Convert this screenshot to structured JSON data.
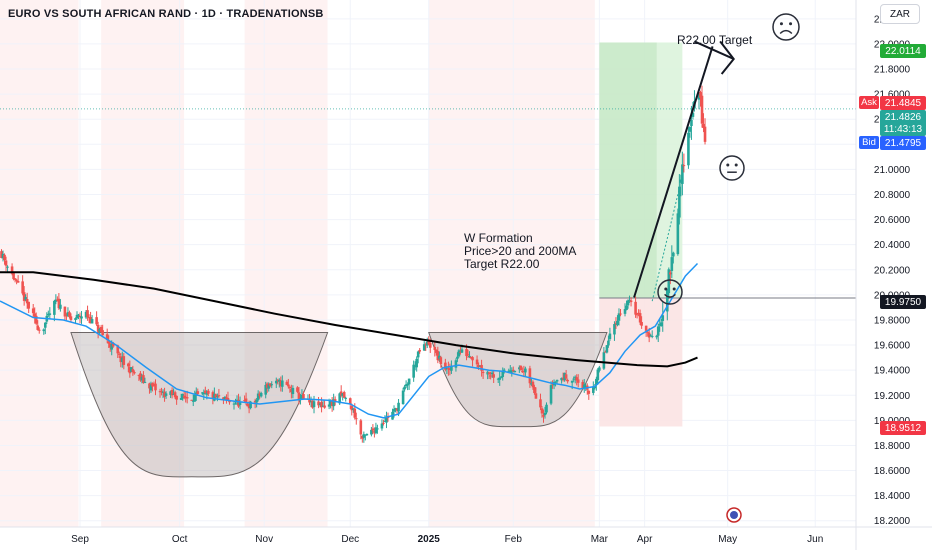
{
  "header": {
    "title": "EURO VS SOUTH AFRICAN RAND · 1D · TRADENATIONSB"
  },
  "toolbar": {
    "currency": "ZAR"
  },
  "colors": {
    "up": "#26a69a",
    "down": "#ef5350",
    "ma20": "#2196f3",
    "ma200": "#000000",
    "target_zone": "#d9f2d9",
    "stop_zone": "#fbe3e3",
    "bowl": "#b8b1b1"
  },
  "chart_data": {
    "type": "candlestick",
    "symbol": "EURZAR",
    "interval": "1D",
    "yaxis": {
      "ticks": [
        22.2,
        22.0,
        21.8,
        21.6,
        21.4,
        21.2,
        21.0,
        20.8,
        20.6,
        20.4,
        20.2,
        20.0,
        19.8,
        19.6,
        19.4,
        19.2,
        19.0,
        18.8,
        18.6,
        18.4,
        18.2
      ],
      "tick_labels": [
        "22.2000",
        "22.0000",
        "21.8000",
        "21.6000",
        "21.4000",
        "21.2000",
        "21.0000",
        "20.8000",
        "20.6000",
        "20.4000",
        "20.2000",
        "20.0000",
        "19.8000",
        "19.6000",
        "19.4000",
        "19.2000",
        "19.0000",
        "18.8000",
        "18.6000",
        "18.4000",
        "18.2000"
      ],
      "range": [
        18.15,
        22.35
      ]
    },
    "xaxis": {
      "labels": [
        "Sep",
        "Oct",
        "Nov",
        "Dec",
        "2025",
        "Feb",
        "Mar",
        "Apr",
        "May",
        "Jun"
      ],
      "label_days": [
        31,
        97,
        153,
        210,
        262,
        318,
        375,
        405,
        460,
        518
      ],
      "range_days": [
        -22,
        545
      ]
    },
    "price_levels": {
      "target": {
        "value": 22.0114,
        "label": "22.0114"
      },
      "entry": {
        "value": 19.975,
        "label": "19.9750"
      },
      "stop": {
        "value": 18.9512,
        "label": "18.9512"
      },
      "ask": {
        "tag": "Ask",
        "label": "21.4845",
        "value": 21.4845
      },
      "last": {
        "label": "21.4826",
        "countdown": "11:43:13",
        "value": 21.4826
      },
      "bid": {
        "tag": "Bid",
        "label": "21.4795",
        "value": 21.4795
      }
    },
    "annotations": {
      "w_formation": [
        "W Formation",
        "Price>20 and 200MA",
        "Target R22.00"
      ],
      "target_label": "R22.00 Target"
    },
    "series": {
      "close_keypoints": [
        [
          -22,
          20.35
        ],
        [
          -5,
          19.95
        ],
        [
          5,
          19.7
        ],
        [
          15,
          19.95
        ],
        [
          25,
          19.8
        ],
        [
          35,
          19.85
        ],
        [
          50,
          19.62
        ],
        [
          60,
          19.45
        ],
        [
          72,
          19.32
        ],
        [
          84,
          19.22
        ],
        [
          100,
          19.18
        ],
        [
          115,
          19.2
        ],
        [
          130,
          19.15
        ],
        [
          145,
          19.12
        ],
        [
          155,
          19.28
        ],
        [
          165,
          19.3
        ],
        [
          175,
          19.2
        ],
        [
          185,
          19.12
        ],
        [
          195,
          19.12
        ],
        [
          205,
          19.2
        ],
        [
          212,
          19.08
        ],
        [
          218,
          18.85
        ],
        [
          225,
          18.92
        ],
        [
          232,
          19.0
        ],
        [
          240,
          19.08
        ],
        [
          248,
          19.3
        ],
        [
          256,
          19.55
        ],
        [
          262,
          19.62
        ],
        [
          268,
          19.5
        ],
        [
          275,
          19.38
        ],
        [
          282,
          19.55
        ],
        [
          290,
          19.52
        ],
        [
          298,
          19.4
        ],
        [
          308,
          19.35
        ],
        [
          318,
          19.42
        ],
        [
          326,
          19.38
        ],
        [
          334,
          19.18
        ],
        [
          338,
          19.05
        ],
        [
          344,
          19.3
        ],
        [
          352,
          19.35
        ],
        [
          360,
          19.32
        ],
        [
          368,
          19.22
        ],
        [
          372,
          19.3
        ],
        [
          378,
          19.52
        ],
        [
          386,
          19.8
        ],
        [
          394,
          19.95
        ],
        [
          400,
          19.85
        ],
        [
          404,
          19.75
        ],
        [
          410,
          19.65
        ],
        [
          414,
          19.72
        ],
        [
          418,
          19.95
        ],
        [
          422,
          20.2
        ],
        [
          426,
          20.6
        ],
        [
          430,
          21.0
        ],
        [
          434,
          21.3
        ],
        [
          437,
          21.5
        ],
        [
          441,
          21.62
        ],
        [
          445,
          21.2
        ]
      ],
      "ma20_keypoints": [
        [
          -22,
          19.95
        ],
        [
          0,
          19.82
        ],
        [
          20,
          19.8
        ],
        [
          35,
          19.75
        ],
        [
          55,
          19.6
        ],
        [
          75,
          19.42
        ],
        [
          95,
          19.25
        ],
        [
          115,
          19.18
        ],
        [
          135,
          19.15
        ],
        [
          150,
          19.13
        ],
        [
          165,
          19.15
        ],
        [
          180,
          19.17
        ],
        [
          195,
          19.16
        ],
        [
          210,
          19.13
        ],
        [
          222,
          19.05
        ],
        [
          232,
          19.02
        ],
        [
          242,
          19.05
        ],
        [
          252,
          19.2
        ],
        [
          262,
          19.35
        ],
        [
          272,
          19.42
        ],
        [
          282,
          19.44
        ],
        [
          292,
          19.42
        ],
        [
          302,
          19.4
        ],
        [
          312,
          19.39
        ],
        [
          322,
          19.36
        ],
        [
          332,
          19.33
        ],
        [
          342,
          19.3
        ],
        [
          352,
          19.28
        ],
        [
          362,
          19.25
        ],
        [
          372,
          19.27
        ],
        [
          382,
          19.38
        ],
        [
          392,
          19.55
        ],
        [
          402,
          19.68
        ],
        [
          412,
          19.75
        ],
        [
          422,
          19.95
        ],
        [
          432,
          20.15
        ],
        [
          440,
          20.25
        ]
      ],
      "ma200_keypoints": [
        [
          -22,
          20.18
        ],
        [
          0,
          20.18
        ],
        [
          40,
          20.12
        ],
        [
          80,
          20.05
        ],
        [
          120,
          19.95
        ],
        [
          160,
          19.85
        ],
        [
          200,
          19.76
        ],
        [
          240,
          19.68
        ],
        [
          280,
          19.6
        ],
        [
          320,
          19.53
        ],
        [
          360,
          19.48
        ],
        [
          400,
          19.44
        ],
        [
          420,
          19.43
        ],
        [
          432,
          19.46
        ],
        [
          440,
          19.5
        ]
      ]
    },
    "ranges": {
      "grey_days": [
        [
          30,
          45
        ],
        [
          100,
          140
        ],
        [
          195,
          262
        ]
      ],
      "pink_days": [
        [
          -22,
          -8
        ],
        [
          -8,
          30
        ],
        [
          45,
          100
        ],
        [
          140,
          195
        ],
        [
          262,
          372
        ]
      ]
    },
    "patterns": {
      "bowls": [
        {
          "start": [
            25,
            19.7
          ],
          "bottom": [
            105,
            18.55
          ],
          "end": [
            195,
            19.7
          ]
        },
        {
          "start": [
            262,
            19.7
          ],
          "bottom": [
            320,
            18.95
          ],
          "end": [
            380,
            19.7
          ]
        }
      ],
      "position": {
        "start_day": 375,
        "end_day": 430
      }
    }
  }
}
